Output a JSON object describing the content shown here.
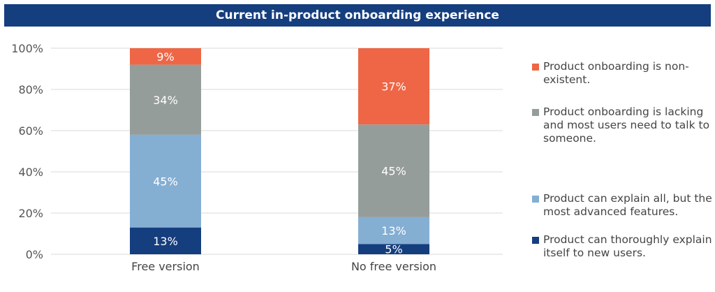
{
  "chart_data": {
    "type": "bar",
    "stacked": true,
    "title": "Current in-product onboarding experience",
    "categories": [
      "Free version",
      "No free version"
    ],
    "series": [
      {
        "name": "Product can thoroughly explain itself to new users.",
        "color": "#153E7E",
        "values": [
          13,
          5
        ]
      },
      {
        "name": "Product can explain all, but the most advanced features.",
        "color": "#85AED3",
        "values": [
          45,
          13
        ]
      },
      {
        "name": "Product onboarding is lacking and most users need to talk to someone.",
        "color": "#959D9B",
        "values": [
          34,
          45
        ]
      },
      {
        "name": "Product onboarding is non-existent.",
        "color": "#EE6645",
        "values": [
          9,
          37
        ]
      }
    ],
    "yticks": [
      "0%",
      "20%",
      "40%",
      "60%",
      "80%",
      "100%"
    ],
    "ylim": [
      0,
      100
    ],
    "grid": true,
    "legend_position": "right"
  }
}
